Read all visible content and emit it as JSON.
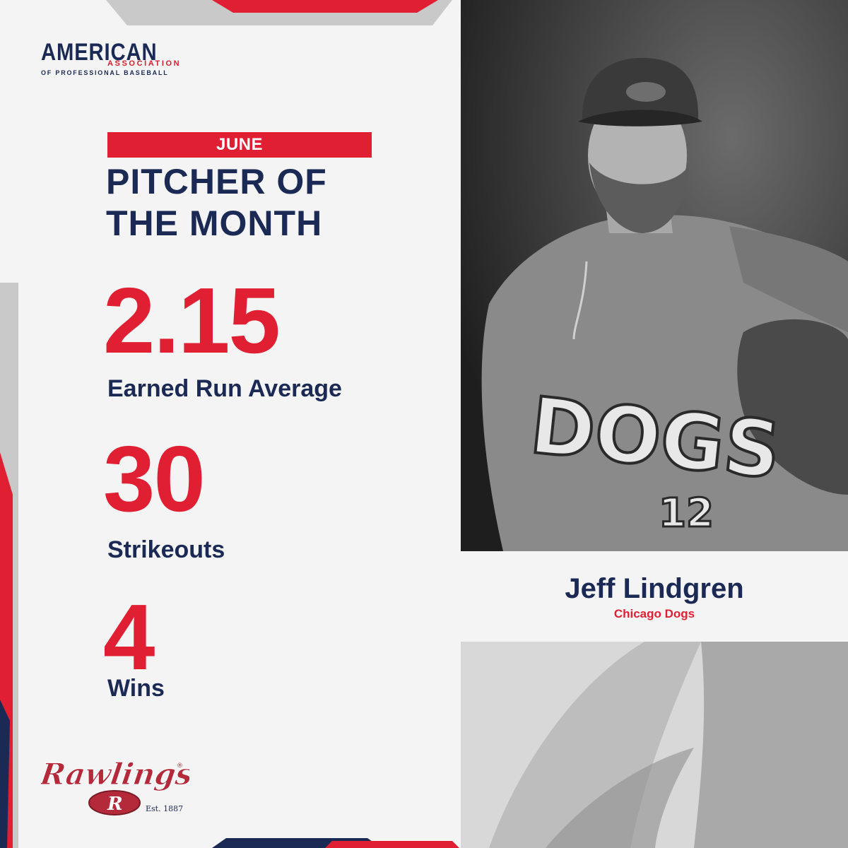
{
  "logo": {
    "top": "AMERICAN",
    "middle": "ASSOCIATION",
    "bottom": "OF PROFESSIONAL BASEBALL"
  },
  "award": {
    "month": "JUNE",
    "title_line1": "PITCHER OF",
    "title_line2": "THE MONTH"
  },
  "stats": [
    {
      "value": "2.15",
      "label": "Earned Run Average"
    },
    {
      "value": "30",
      "label": "Strikeouts"
    },
    {
      "value": "4",
      "label": "Wins"
    }
  ],
  "player": {
    "name": "Jeff Lindgren",
    "team": "Chicago Dogs",
    "jersey_text": "DOGS",
    "jersey_number": "12"
  },
  "sponsor": {
    "name": "Rawlings",
    "tagline": "Est. 1887",
    "registered_mark": "®"
  },
  "colors": {
    "navy": "#1b2a55",
    "red": "#e01f32",
    "background": "#f4f4f4",
    "gray": "#c9c9c9"
  }
}
